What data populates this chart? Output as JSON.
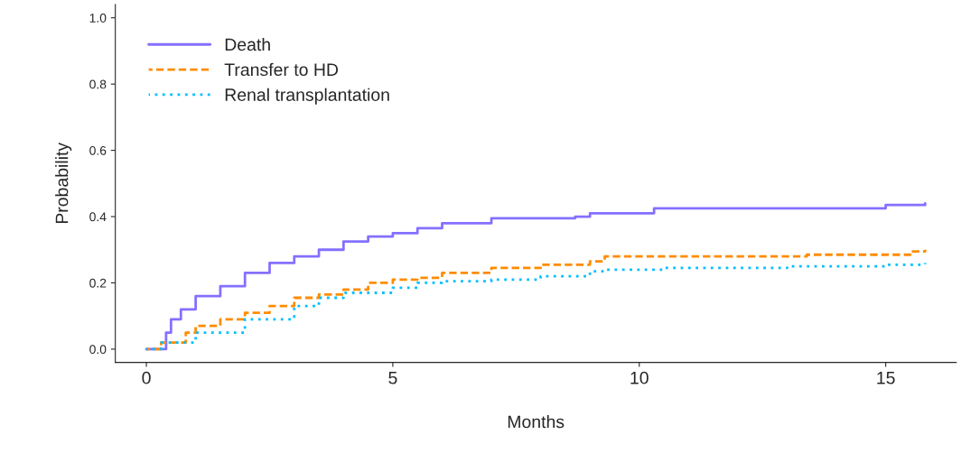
{
  "chart_data": {
    "type": "step",
    "xlabel": "Months",
    "ylabel": "Probability",
    "xlim": [
      -0.63,
      16.43
    ],
    "ylim": [
      -0.04,
      1.04
    ],
    "xticks": [
      0,
      5,
      10,
      15
    ],
    "yticks": [
      {
        "value": 0,
        "label": "0.0"
      },
      {
        "value": 0.2,
        "label": "0.2"
      },
      {
        "value": 0.4,
        "label": "0.4"
      },
      {
        "value": 0.6,
        "label": "0.6"
      },
      {
        "value": 0.8,
        "label": "0.8"
      },
      {
        "value": 1,
        "label": "1.0"
      }
    ],
    "grid": false,
    "legend": "top left",
    "series": [
      {
        "name": "Death",
        "color": "#8470ff",
        "line_style": "solid",
        "x": [
          0,
          0.4,
          0.5,
          0.7,
          1.0,
          1.5,
          2.0,
          2.5,
          3.0,
          3.5,
          4.0,
          4.5,
          5.0,
          5.5,
          6.0,
          7.0,
          8.7,
          9.0,
          10.2,
          10.3,
          14.9,
          15.0,
          15.8
        ],
        "values": [
          0,
          0.05,
          0.09,
          0.12,
          0.16,
          0.19,
          0.23,
          0.26,
          0.28,
          0.3,
          0.325,
          0.34,
          0.35,
          0.365,
          0.38,
          0.395,
          0.4,
          0.41,
          0.41,
          0.425,
          0.425,
          0.435,
          0.44
        ]
      },
      {
        "name": "Transfer to HD",
        "color": "#ff8c00",
        "line_style": "dashed",
        "x": [
          0,
          0.3,
          0.8,
          1.0,
          1.5,
          2.0,
          2.5,
          3.0,
          3.5,
          4.0,
          4.5,
          5.0,
          5.5,
          6.0,
          7.0,
          8.0,
          9.0,
          9.3,
          13.2,
          13.4,
          14.9,
          15.5,
          15.8
        ],
        "values": [
          0,
          0.02,
          0.05,
          0.07,
          0.09,
          0.11,
          0.13,
          0.155,
          0.165,
          0.18,
          0.2,
          0.21,
          0.215,
          0.23,
          0.245,
          0.255,
          0.265,
          0.28,
          0.28,
          0.285,
          0.285,
          0.295,
          0.3
        ]
      },
      {
        "name": "Renal transplantation",
        "color": "#00bfff",
        "line_style": "dotted",
        "x": [
          0,
          0.3,
          1.0,
          2.0,
          3.0,
          3.5,
          4.0,
          5.0,
          5.5,
          6.0,
          7.0,
          8.0,
          9.0,
          9.3,
          10.5,
          12.0,
          13.0,
          15.0,
          15.8
        ],
        "values": [
          0,
          0.02,
          0.05,
          0.09,
          0.13,
          0.155,
          0.17,
          0.185,
          0.2,
          0.205,
          0.21,
          0.22,
          0.235,
          0.24,
          0.245,
          0.245,
          0.25,
          0.255,
          0.26
        ]
      }
    ]
  }
}
